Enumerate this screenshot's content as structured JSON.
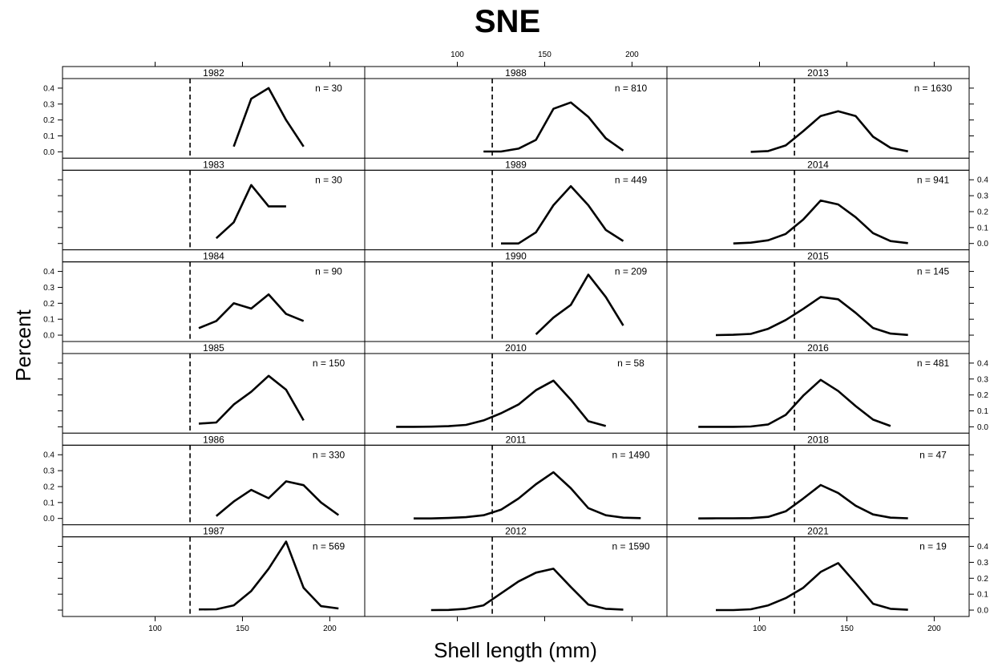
{
  "chart_data": {
    "type": "line",
    "title": "SNE",
    "xlabel": "Shell length (mm)",
    "ylabel": "Percent",
    "xlim": [
      47,
      220
    ],
    "ylim": [
      -0.04,
      0.46
    ],
    "x_ticks": [
      100,
      150,
      200
    ],
    "y_ticks": [
      0.0,
      0.1,
      0.2,
      0.3,
      0.4
    ],
    "y_tick_labels": [
      "0.0",
      "0.1",
      "0.2",
      "0.3",
      "0.4"
    ],
    "reference_line_x": 120,
    "columns": 3,
    "rows": 6,
    "panels": [
      {
        "year": "1982",
        "n_label": "n = 30",
        "x": [
          145,
          155,
          165,
          175,
          185
        ],
        "y": [
          0.033,
          0.333,
          0.4,
          0.2,
          0.033
        ]
      },
      {
        "year": "1983",
        "n_label": "n = 30",
        "x": [
          135,
          145,
          155,
          165,
          175
        ],
        "y": [
          0.033,
          0.133,
          0.367,
          0.233,
          0.233
        ]
      },
      {
        "year": "1984",
        "n_label": "n = 90",
        "x": [
          125,
          135,
          145,
          155,
          165,
          175,
          185
        ],
        "y": [
          0.044,
          0.089,
          0.2,
          0.167,
          0.256,
          0.133,
          0.089
        ]
      },
      {
        "year": "1985",
        "n_label": "n = 150",
        "x": [
          125,
          135,
          145,
          155,
          165,
          175,
          185
        ],
        "y": [
          0.02,
          0.027,
          0.14,
          0.22,
          0.32,
          0.233,
          0.04
        ]
      },
      {
        "year": "1986",
        "n_label": "n = 330",
        "x": [
          135,
          145,
          155,
          165,
          175,
          185,
          195,
          205
        ],
        "y": [
          0.015,
          0.106,
          0.179,
          0.127,
          0.233,
          0.209,
          0.1,
          0.021
        ]
      },
      {
        "year": "1987",
        "n_label": "n = 569",
        "x": [
          125,
          135,
          145,
          155,
          165,
          175,
          185,
          195,
          205
        ],
        "y": [
          0.004,
          0.005,
          0.03,
          0.12,
          0.26,
          0.43,
          0.14,
          0.025,
          0.01
        ]
      },
      {
        "year": "1988",
        "n_label": "n = 810",
        "x": [
          115,
          125,
          135,
          145,
          155,
          165,
          175,
          185,
          195
        ],
        "y": [
          0.002,
          0.002,
          0.02,
          0.075,
          0.27,
          0.31,
          0.22,
          0.085,
          0.008
        ]
      },
      {
        "year": "1989",
        "n_label": "n = 449",
        "x": [
          125,
          135,
          145,
          155,
          165,
          175,
          185,
          195
        ],
        "y": [
          0.0,
          0.0,
          0.07,
          0.24,
          0.36,
          0.24,
          0.085,
          0.015
        ]
      },
      {
        "year": "1990",
        "n_label": "n = 209",
        "x": [
          145,
          155,
          165,
          175,
          185,
          195
        ],
        "y": [
          0.005,
          0.11,
          0.19,
          0.38,
          0.24,
          0.06
        ]
      },
      {
        "year": "2010",
        "n_label": "n = 58",
        "x": [
          65,
          75,
          85,
          95,
          105,
          115,
          125,
          135,
          145,
          155,
          165,
          175,
          185
        ],
        "y": [
          0.0,
          0.0,
          0.001,
          0.004,
          0.012,
          0.04,
          0.085,
          0.14,
          0.23,
          0.29,
          0.17,
          0.035,
          0.005
        ]
      },
      {
        "year": "2011",
        "n_label": "n = 1490",
        "x": [
          75,
          85,
          95,
          105,
          115,
          125,
          135,
          145,
          155,
          165,
          175,
          185,
          195,
          205
        ],
        "y": [
          0.0,
          0.0,
          0.003,
          0.008,
          0.02,
          0.055,
          0.125,
          0.215,
          0.29,
          0.19,
          0.065,
          0.02,
          0.005,
          0.002
        ]
      },
      {
        "year": "2012",
        "n_label": "n = 1590",
        "x": [
          85,
          95,
          105,
          115,
          125,
          135,
          145,
          155,
          165,
          175,
          185,
          195
        ],
        "y": [
          0.0,
          0.001,
          0.008,
          0.03,
          0.105,
          0.18,
          0.235,
          0.26,
          0.145,
          0.035,
          0.008,
          0.003
        ]
      },
      {
        "year": "2013",
        "n_label": "n = 1630",
        "x": [
          95,
          105,
          115,
          125,
          135,
          145,
          155,
          165,
          175,
          185
        ],
        "y": [
          0.0,
          0.005,
          0.04,
          0.13,
          0.225,
          0.255,
          0.225,
          0.095,
          0.025,
          0.003
        ]
      },
      {
        "year": "2014",
        "n_label": "n = 941",
        "x": [
          85,
          95,
          105,
          115,
          125,
          135,
          145,
          155,
          165,
          175,
          185
        ],
        "y": [
          0.0,
          0.005,
          0.02,
          0.06,
          0.15,
          0.27,
          0.245,
          0.165,
          0.065,
          0.015,
          0.002
        ]
      },
      {
        "year": "2015",
        "n_label": "n = 145",
        "x": [
          75,
          85,
          95,
          105,
          115,
          125,
          135,
          145,
          155,
          165,
          175,
          185
        ],
        "y": [
          0.0,
          0.002,
          0.008,
          0.04,
          0.095,
          0.165,
          0.24,
          0.225,
          0.14,
          0.045,
          0.01,
          0.001
        ]
      },
      {
        "year": "2016",
        "n_label": "n = 481",
        "x": [
          65,
          75,
          85,
          95,
          105,
          115,
          125,
          135,
          145,
          155,
          165,
          175
        ],
        "y": [
          0.0,
          0.0,
          0.0,
          0.002,
          0.015,
          0.075,
          0.195,
          0.295,
          0.225,
          0.13,
          0.045,
          0.005
        ]
      },
      {
        "year": "2018",
        "n_label": "n = 47",
        "x": [
          65,
          75,
          85,
          95,
          105,
          115,
          125,
          135,
          145,
          155,
          165,
          175,
          185
        ],
        "y": [
          0.0,
          0.001,
          0.001,
          0.002,
          0.01,
          0.045,
          0.125,
          0.21,
          0.16,
          0.08,
          0.025,
          0.005,
          0.001
        ]
      },
      {
        "year": "2021",
        "n_label": "n = 19",
        "x": [
          75,
          85,
          95,
          105,
          115,
          125,
          135,
          145,
          155,
          165,
          175,
          185
        ],
        "y": [
          0.0,
          0.0,
          0.005,
          0.03,
          0.075,
          0.14,
          0.24,
          0.295,
          0.17,
          0.04,
          0.008,
          0.002
        ]
      }
    ]
  }
}
